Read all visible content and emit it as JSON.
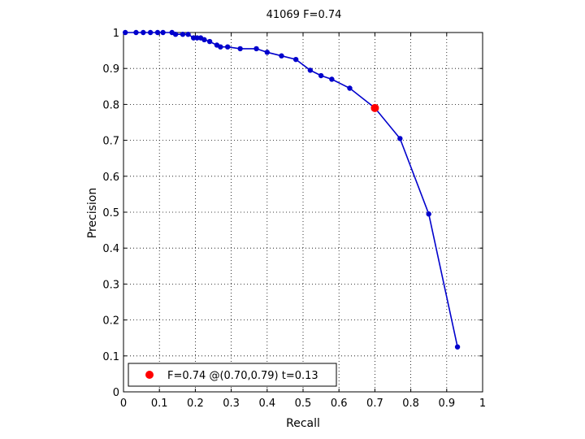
{
  "chart_data": {
    "type": "line",
    "title": "41069 F=0.74",
    "xlabel": "Recall",
    "ylabel": "Precision",
    "xlim": [
      0,
      1
    ],
    "ylim": [
      0,
      1
    ],
    "grid": true,
    "xticks": [
      "0",
      "0.1",
      "0.2",
      "0.3",
      "0.4",
      "0.5",
      "0.6",
      "0.7",
      "0.8",
      "0.9",
      "1"
    ],
    "yticks": [
      "0",
      "0.1",
      "0.2",
      "0.3",
      "0.4",
      "0.5",
      "0.6",
      "0.7",
      "0.8",
      "0.9",
      "1"
    ],
    "series": [
      {
        "color": "#0000cc",
        "x": [
          0.005,
          0.035,
          0.055,
          0.075,
          0.095,
          0.11,
          0.135,
          0.145,
          0.165,
          0.18,
          0.195,
          0.205,
          0.215,
          0.225,
          0.24,
          0.26,
          0.27,
          0.29,
          0.325,
          0.37,
          0.4,
          0.44,
          0.48,
          0.52,
          0.55,
          0.58,
          0.63,
          0.7,
          0.77,
          0.85,
          0.93
        ],
        "y": [
          1.0,
          1.0,
          1.0,
          1.0,
          1.0,
          1.0,
          1.0,
          0.995,
          0.995,
          0.995,
          0.985,
          0.985,
          0.985,
          0.98,
          0.975,
          0.965,
          0.96,
          0.96,
          0.955,
          0.955,
          0.945,
          0.935,
          0.925,
          0.895,
          0.88,
          0.87,
          0.845,
          0.79,
          0.705,
          0.495,
          0.125
        ]
      }
    ],
    "highlight": {
      "x": 0.7,
      "y": 0.79,
      "color": "#ff0000"
    },
    "legend": {
      "position": "bottom-left",
      "label": "F=0.74 @(0.70,0.79) t=0.13"
    }
  }
}
